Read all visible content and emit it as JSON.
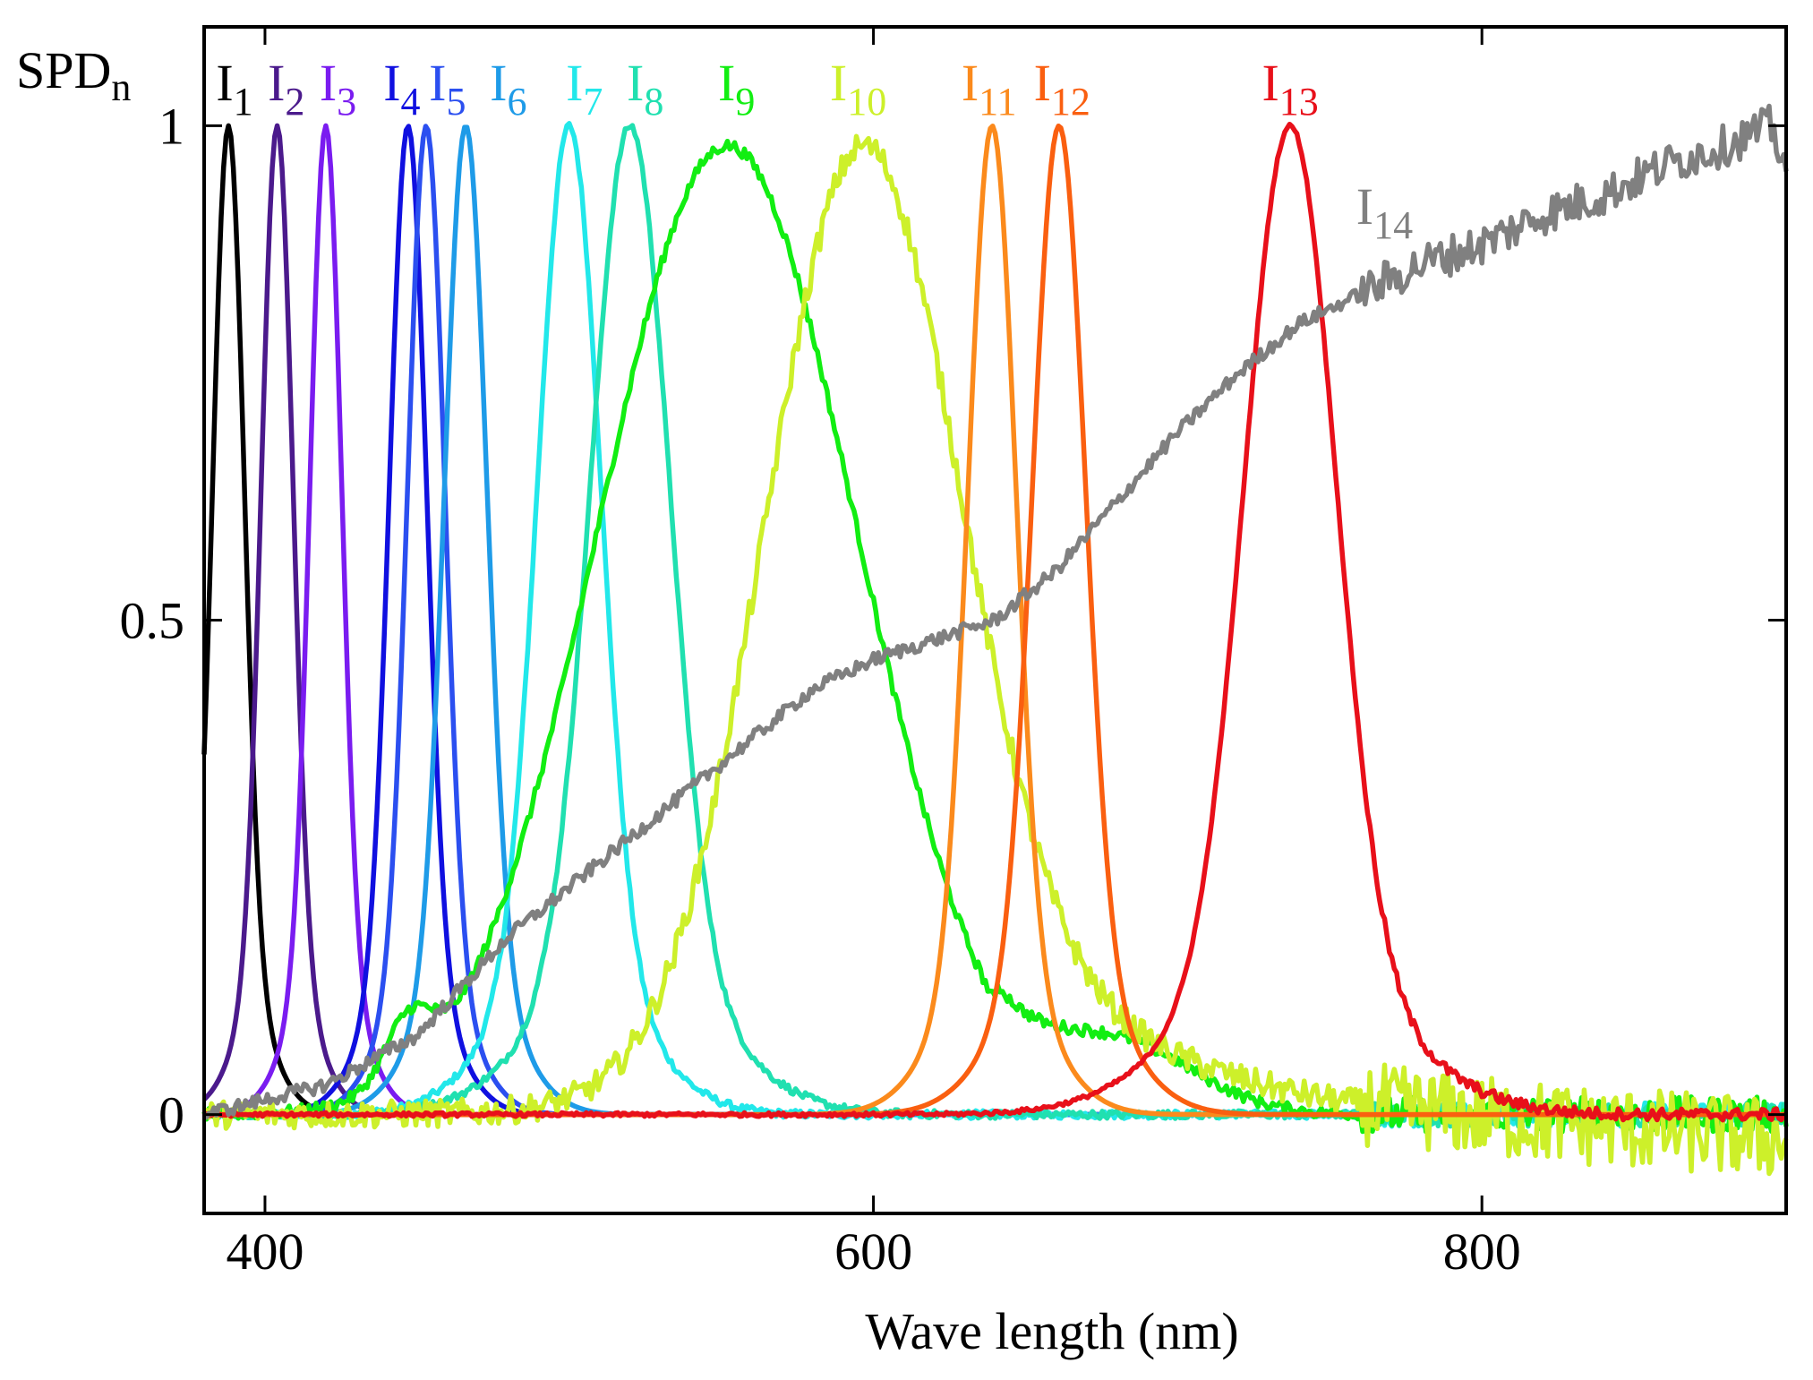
{
  "chart_data": {
    "type": "line",
    "title": "",
    "xlabel": "Wave length (nm)",
    "ylabel_main": "SPD",
    "ylabel_sub": "n",
    "xlim": [
      380,
      900
    ],
    "ylim": [
      -0.1,
      1.1
    ],
    "xticks": [
      400,
      600,
      800
    ],
    "xtick_labels": [
      "400",
      "600",
      "800"
    ],
    "yticks": [
      0,
      0.5,
      1
    ],
    "ytick_labels": [
      "0",
      "0.5",
      "1"
    ],
    "grid": false,
    "legend": "inline labels above peaks",
    "series": [
      {
        "name": "I",
        "sub": "1",
        "color": "#000000",
        "shape": "gauss",
        "peak": 388,
        "fwhm": 12,
        "label_x": 390,
        "noise": 0
      },
      {
        "name": "I",
        "sub": "2",
        "color": "#4b1a8c",
        "shape": "gauss",
        "peak": 404,
        "fwhm": 12,
        "label_x": 407,
        "noise": 0
      },
      {
        "name": "I",
        "sub": "3",
        "color": "#7a1cf0",
        "shape": "gauss",
        "peak": 420,
        "fwhm": 12,
        "label_x": 424,
        "noise": 0
      },
      {
        "name": "I",
        "sub": "4",
        "color": "#1010e0",
        "shape": "gauss",
        "peak": 447,
        "fwhm": 14,
        "label_x": 445,
        "noise": 0
      },
      {
        "name": "I",
        "sub": "5",
        "color": "#2b4ff0",
        "shape": "gauss",
        "peak": 453,
        "fwhm": 14,
        "label_x": 460,
        "noise": 0
      },
      {
        "name": "I",
        "sub": "6",
        "color": "#1e9be8",
        "shape": "gauss",
        "peak": 466,
        "fwhm": 16,
        "label_x": 480,
        "noise": 0
      },
      {
        "name": "I",
        "sub": "7",
        "color": "#22e8ea",
        "shape": "gauss",
        "peak": 500,
        "fwhm": 24,
        "label_x": 505,
        "noise": 0.004
      },
      {
        "name": "I",
        "sub": "8",
        "color": "#20e0b0",
        "shape": "gauss",
        "peak": 520,
        "fwhm": 30,
        "label_x": 525,
        "noise": 0.004
      },
      {
        "name": "I",
        "sub": "9",
        "color": "#12ee12",
        "shape": "green",
        "peak": 552,
        "fwhm": 100,
        "label_x": 555,
        "noise": 0.006
      },
      {
        "name": "I",
        "sub": "10",
        "color": "#cdf02a",
        "shape": "yellow",
        "peak": 596,
        "fwhm": 75,
        "label_x": 595,
        "noise": 0.014
      },
      {
        "name": "I",
        "sub": "11",
        "color": "#fb8a1c",
        "shape": "gauss",
        "peak": 639,
        "fwhm": 18,
        "label_x": 638,
        "noise": 0
      },
      {
        "name": "I",
        "sub": "12",
        "color": "#fa5f10",
        "shape": "gauss",
        "peak": 661,
        "fwhm": 20,
        "label_x": 662,
        "noise": 0
      },
      {
        "name": "I",
        "sub": "13",
        "color": "#e8101a",
        "shape": "gauss",
        "peak": 737,
        "fwhm": 35,
        "label_x": 737,
        "noise": 0.002
      },
      {
        "name": "I",
        "sub": "14",
        "color": "#808080",
        "shape": "halogen",
        "peak": 895,
        "fwhm": 0,
        "label_x": 768,
        "noise": 0.007,
        "anchors_x": [
          380,
          420,
          450,
          480,
          520,
          560,
          580,
          600,
          620,
          640,
          660,
          680,
          700,
          720,
          740,
          760,
          780,
          800,
          820,
          840,
          860,
          880,
          895,
          900
        ],
        "anchors_y": [
          0.0,
          0.03,
          0.08,
          0.18,
          0.28,
          0.38,
          0.43,
          0.46,
          0.48,
          0.5,
          0.55,
          0.62,
          0.69,
          0.75,
          0.8,
          0.83,
          0.86,
          0.88,
          0.91,
          0.93,
          0.96,
          0.98,
          1.0,
          0.96
        ]
      }
    ]
  }
}
